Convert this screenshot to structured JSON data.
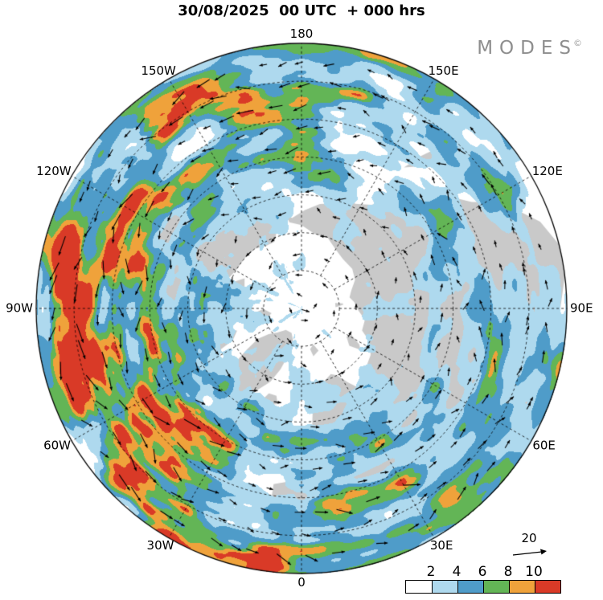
{
  "header": {
    "title": "30/08/2025  00 UTC  + 000 hrs"
  },
  "brand": {
    "name": "MODES",
    "mark": "©"
  },
  "map": {
    "ocean_color": "#ffffff",
    "land_color": "#c9c9c9",
    "longitude_labels": [
      {
        "text": "0",
        "deg": 0
      },
      {
        "text": "30E",
        "deg": 30
      },
      {
        "text": "60E",
        "deg": 60
      },
      {
        "text": "90E",
        "deg": 90
      },
      {
        "text": "120E",
        "deg": 120
      },
      {
        "text": "150E",
        "deg": 150
      },
      {
        "text": "180",
        "deg": 180
      },
      {
        "text": "150W",
        "deg": 210
      },
      {
        "text": "120W",
        "deg": 240
      },
      {
        "text": "90W",
        "deg": 270
      },
      {
        "text": "60W",
        "deg": 300
      },
      {
        "text": "30W",
        "deg": 330
      }
    ]
  },
  "legend": {
    "reference_label": "20"
  },
  "colorbar": {
    "tick_labels": [
      "2",
      "4",
      "6",
      "8",
      "10"
    ],
    "segment_colors": [
      "#ffffff",
      "#aed9ee",
      "#4f9cc9",
      "#63b556",
      "#efa23b",
      "#d93a27"
    ]
  },
  "chart_data": {
    "type": "heatmap",
    "title": "30/08/2025 00 UTC + 000 hrs",
    "projection": "north_polar_stereographic",
    "longitude_ticks": [
      "0",
      "30E",
      "60E",
      "90E",
      "120E",
      "150E",
      "180",
      "150W",
      "120W",
      "90W",
      "60W",
      "30W"
    ],
    "contour_levels": [
      2,
      4,
      6,
      8,
      10
    ],
    "level_colors": [
      "#ffffff",
      "#aed9ee",
      "#4f9cc9",
      "#63b556",
      "#efa23b",
      "#d93a27"
    ],
    "vector_overlay": {
      "type": "wind_arrows",
      "reference_value": 20
    },
    "land_mask_color": "#c9c9c9",
    "grid": "dashed_latitude_circles_and_30deg_meridians"
  }
}
